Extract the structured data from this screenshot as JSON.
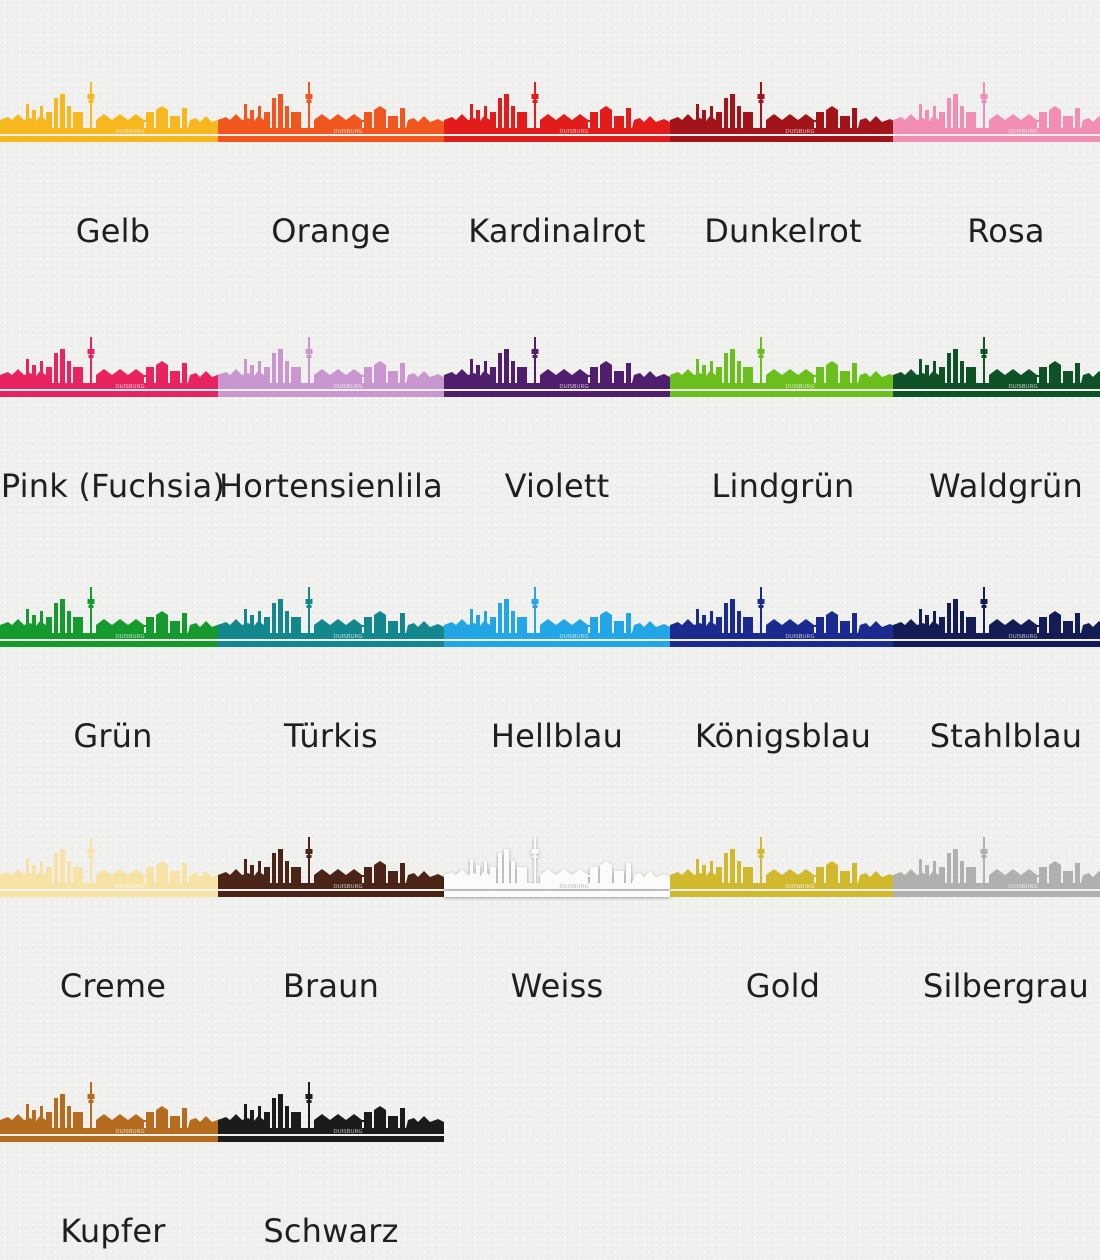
{
  "city_name": "DUISBURG",
  "colors": [
    {
      "label": "Gelb",
      "color": "#f6b81e"
    },
    {
      "label": "Orange",
      "color": "#f0561e"
    },
    {
      "label": "Kardinalrot",
      "color": "#e21b1b"
    },
    {
      "label": "Dunkelrot",
      "color": "#a3141a"
    },
    {
      "label": "Rosa",
      "color": "#f28db4"
    },
    {
      "label": "Pink (Fuchsia)",
      "color": "#e7245f"
    },
    {
      "label": "Hortensienlila",
      "color": "#c996d0"
    },
    {
      "label": "Violett",
      "color": "#4f1f6d"
    },
    {
      "label": "Lindgrün",
      "color": "#6bbf1d"
    },
    {
      "label": "Waldgrün",
      "color": "#0f5228"
    },
    {
      "label": "Grün",
      "color": "#149a2d"
    },
    {
      "label": "Türkis",
      "color": "#12878d"
    },
    {
      "label": "Hellblau",
      "color": "#22a6e6"
    },
    {
      "label": "Königsblau",
      "color": "#1a2a8e"
    },
    {
      "label": "Stahlblau",
      "color": "#141c55"
    },
    {
      "label": "Creme",
      "color": "#f6e3a5"
    },
    {
      "label": "Braun",
      "color": "#4a2416"
    },
    {
      "label": "Weiss",
      "color": "#fbfbfb"
    },
    {
      "label": "Gold",
      "color": "#d1b92d"
    },
    {
      "label": "Silbergrau",
      "color": "#b0b0b0"
    },
    {
      "label": "Kupfer",
      "color": "#b66c1f"
    },
    {
      "label": "Schwarz",
      "color": "#1b1b1b"
    }
  ]
}
